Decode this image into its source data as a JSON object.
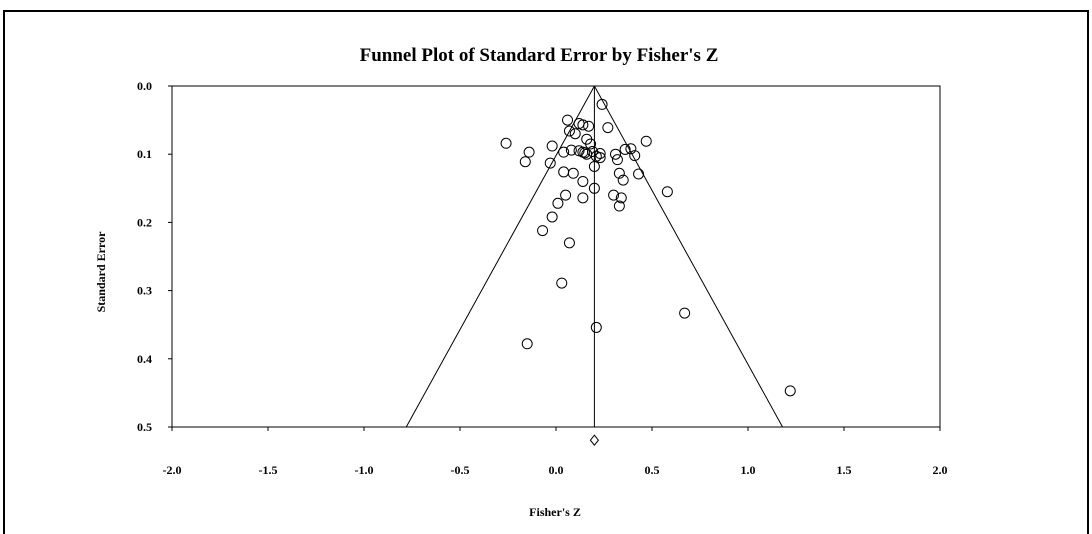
{
  "chart_data": {
    "type": "scatter",
    "title": "Funnel Plot of Standard Error by Fisher's Z",
    "xlabel": "Fisher's Z",
    "ylabel": "Standard Error",
    "xlim": [
      -2.0,
      2.0
    ],
    "ylim": [
      0.0,
      0.5
    ],
    "y_inverted": true,
    "x_tick_labels": [
      "-2.0",
      "-1.5",
      "-1.0",
      "-0.5",
      "0.0",
      "0.5",
      "1.0",
      "1.5",
      "2.0"
    ],
    "y_tick_labels": [
      "0.0",
      "0.1",
      "0.2",
      "0.3",
      "0.4",
      "0.5"
    ],
    "combined_effect": 0.2,
    "funnel_apex": [
      0.2,
      0.0
    ],
    "funnel_base": [
      [
        -0.78,
        0.5
      ],
      [
        1.18,
        0.5
      ]
    ],
    "combined_marker": {
      "x": 0.2,
      "y": 0.515,
      "shape": "diamond"
    },
    "points": [
      {
        "x": 0.24,
        "y": 0.027
      },
      {
        "x": 0.06,
        "y": 0.05
      },
      {
        "x": 0.12,
        "y": 0.055
      },
      {
        "x": 0.14,
        "y": 0.057
      },
      {
        "x": 0.17,
        "y": 0.059
      },
      {
        "x": 0.27,
        "y": 0.061
      },
      {
        "x": 0.07,
        "y": 0.066
      },
      {
        "x": 0.1,
        "y": 0.07
      },
      {
        "x": 0.16,
        "y": 0.078
      },
      {
        "x": 0.18,
        "y": 0.085
      },
      {
        "x": 0.47,
        "y": 0.081
      },
      {
        "x": -0.26,
        "y": 0.084
      },
      {
        "x": -0.02,
        "y": 0.088
      },
      {
        "x": 0.08,
        "y": 0.094
      },
      {
        "x": 0.12,
        "y": 0.095
      },
      {
        "x": 0.14,
        "y": 0.097
      },
      {
        "x": 0.15,
        "y": 0.098
      },
      {
        "x": 0.19,
        "y": 0.096
      },
      {
        "x": 0.23,
        "y": 0.099
      },
      {
        "x": 0.31,
        "y": 0.1
      },
      {
        "x": 0.36,
        "y": 0.093
      },
      {
        "x": 0.39,
        "y": 0.092
      },
      {
        "x": 0.41,
        "y": 0.102
      },
      {
        "x": -0.14,
        "y": 0.097
      },
      {
        "x": 0.04,
        "y": 0.097
      },
      {
        "x": 0.16,
        "y": 0.1
      },
      {
        "x": 0.21,
        "y": 0.103
      },
      {
        "x": 0.23,
        "y": 0.105
      },
      {
        "x": 0.32,
        "y": 0.108
      },
      {
        "x": -0.16,
        "y": 0.111
      },
      {
        "x": -0.03,
        "y": 0.113
      },
      {
        "x": 0.2,
        "y": 0.118
      },
      {
        "x": 0.04,
        "y": 0.126
      },
      {
        "x": 0.09,
        "y": 0.128
      },
      {
        "x": 0.33,
        "y": 0.128
      },
      {
        "x": 0.43,
        "y": 0.129
      },
      {
        "x": 0.14,
        "y": 0.14
      },
      {
        "x": 0.35,
        "y": 0.138
      },
      {
        "x": 0.2,
        "y": 0.15
      },
      {
        "x": 0.58,
        "y": 0.155
      },
      {
        "x": 0.05,
        "y": 0.16
      },
      {
        "x": 0.3,
        "y": 0.16
      },
      {
        "x": 0.14,
        "y": 0.164
      },
      {
        "x": 0.34,
        "y": 0.164
      },
      {
        "x": 0.01,
        "y": 0.172
      },
      {
        "x": 0.33,
        "y": 0.176
      },
      {
        "x": -0.02,
        "y": 0.192
      },
      {
        "x": -0.07,
        "y": 0.212
      },
      {
        "x": 0.07,
        "y": 0.23
      },
      {
        "x": 0.03,
        "y": 0.289
      },
      {
        "x": 0.67,
        "y": 0.333
      },
      {
        "x": 0.21,
        "y": 0.354
      },
      {
        "x": -0.15,
        "y": 0.378
      },
      {
        "x": 1.22,
        "y": 0.447
      }
    ]
  }
}
